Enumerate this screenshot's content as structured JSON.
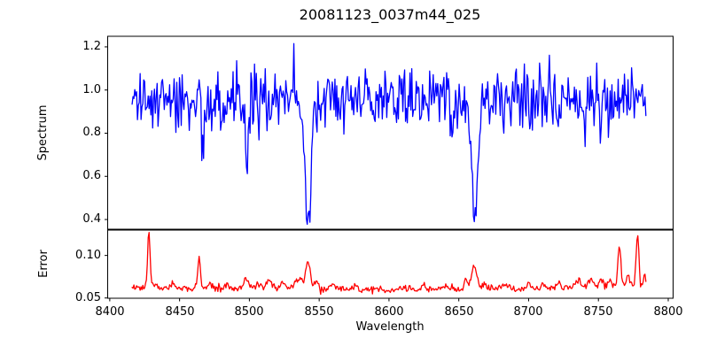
{
  "figure": {
    "background": "#ffffff"
  },
  "chart_data": {
    "type": "line",
    "title": "20081123_0037m44_025",
    "xlabel": "Wavelength",
    "grid": false,
    "legend": null,
    "xlim": [
      8398.5,
      8803.5
    ],
    "x_data_range": [
      8416,
      8784
    ],
    "xticks": {
      "values": [
        8400,
        8450,
        8500,
        8550,
        8600,
        8650,
        8700,
        8750,
        8800
      ],
      "labels": [
        "8400",
        "8450",
        "8500",
        "8550",
        "8600",
        "8650",
        "8700",
        "8750",
        "8800"
      ]
    },
    "panels": [
      {
        "name": "spectrum",
        "ylabel": "Spectrum",
        "color": "#0000ff",
        "ylim": [
          0.355,
          1.249
        ],
        "yticks": {
          "values": [
            0.4,
            0.6,
            0.8,
            1.0,
            1.2
          ],
          "labels": [
            "0.4",
            "0.6",
            "0.8",
            "1.0",
            "1.2"
          ]
        },
        "series": {
          "mode": "absorption",
          "x_start": 8416,
          "x_end": 8784.2,
          "x_step": 0.64,
          "seed": 1234,
          "baseline": 0.952,
          "noise_sigma": 0.066,
          "spike_down": {
            "prob": 0.03,
            "min": 0.05,
            "max": 0.25
          },
          "spike_up": {
            "prob": 0.02,
            "min": 0.04,
            "max": 0.16
          },
          "clamp": [
            0.37,
            1.215
          ],
          "features": [
            [
              8498.0,
              0.35,
              1.2
            ],
            [
              8542.0,
              0.53,
              1.9
            ],
            [
              8542.0,
              0.07,
              6.0
            ],
            [
              8645.0,
              0.18,
              1.0
            ],
            [
              8661.5,
              0.5,
              2.0
            ],
            [
              8661.5,
              0.05,
              5.0
            ]
          ]
        }
      },
      {
        "name": "error",
        "ylabel": "Error",
        "color": "#ff0000",
        "ylim": [
          0.0497,
          0.1298
        ],
        "yticks": {
          "values": [
            0.05,
            0.1
          ],
          "labels": [
            "0.05",
            "0.10"
          ]
        },
        "series": {
          "mode": "emission",
          "x_start": 8416,
          "x_end": 8784.2,
          "x_step": 0.64,
          "seed": 987,
          "baseline": 0.0615,
          "noise_sigma": 0.0021,
          "spike_up": {
            "prob": 0.02,
            "min": 0.001,
            "max": 0.005
          },
          "clamp": [
            0.053,
            0.127
          ],
          "features": [
            [
              8428,
              0.064,
              0.9
            ],
            [
              8433,
              0.006,
              1.5
            ],
            [
              8445,
              0.005,
              1.5
            ],
            [
              8464,
              0.037,
              0.9
            ],
            [
              8472,
              0.005,
              1.5
            ],
            [
              8484,
              0.006,
              1.2
            ],
            [
              8498,
              0.012,
              1.5
            ],
            [
              8506,
              0.005,
              2.0
            ],
            [
              8514,
              0.009,
              2.0
            ],
            [
              8524,
              0.007,
              1.5
            ],
            [
              8536,
              0.01,
              3.0
            ],
            [
              8542,
              0.031,
              1.6
            ],
            [
              8548,
              0.01,
              1.2
            ],
            [
              8560,
              0.007,
              1.5
            ],
            [
              8576,
              0.004,
              2.0
            ],
            [
              8608,
              0.004,
              1.5
            ],
            [
              8625,
              0.005,
              1.5
            ],
            [
              8640,
              0.005,
              2.0
            ],
            [
              8655,
              0.008,
              1.5
            ],
            [
              8661,
              0.027,
              1.8
            ],
            [
              8668,
              0.006,
              1.5
            ],
            [
              8684,
              0.004,
              2.0
            ],
            [
              8700,
              0.005,
              1.5
            ],
            [
              8712,
              0.004,
              1.5
            ],
            [
              8722,
              0.005,
              1.5
            ],
            [
              8735,
              0.006,
              2.0
            ],
            [
              8745,
              0.008,
              1.5
            ],
            [
              8752,
              0.009,
              1.2
            ],
            [
              8758,
              0.007,
              1.2
            ],
            [
              8765,
              0.047,
              1.1
            ],
            [
              8771,
              0.013,
              1.2
            ],
            [
              8778,
              0.062,
              1.0
            ],
            [
              8783,
              0.012,
              1.0
            ],
            [
              8760,
              0.002,
              30.0
            ],
            [
              8590,
              -0.0015,
              50.0
            ]
          ]
        }
      }
    ]
  }
}
